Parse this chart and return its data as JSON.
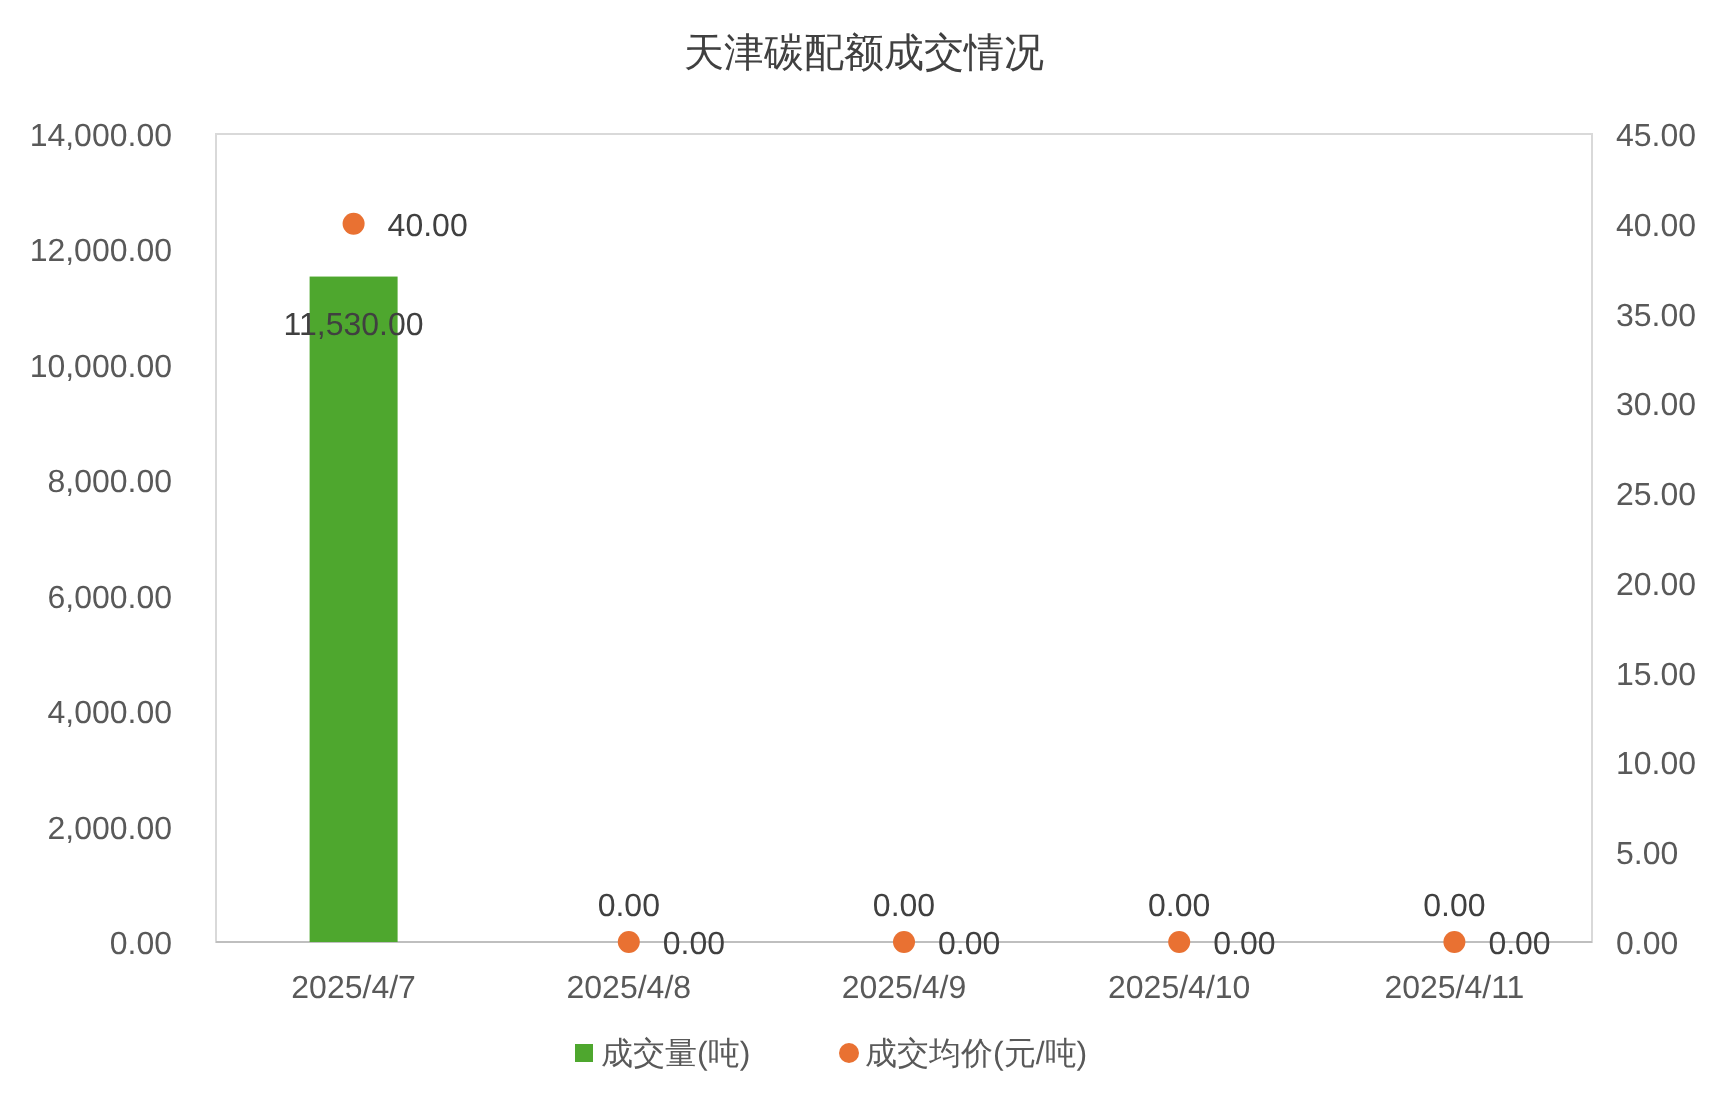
{
  "chart_data": {
    "type": "bar",
    "title": "天津碳配额成交情况",
    "categories": [
      "2025/4/7",
      "2025/4/8",
      "2025/4/9",
      "2025/4/10",
      "2025/4/11"
    ],
    "series": [
      {
        "name": "成交量(吨)",
        "type": "bar",
        "color": "#4ea72e",
        "values": [
          11530,
          0,
          0,
          0,
          0
        ],
        "value_labels": [
          "11,530.00",
          "0.00",
          "0.00",
          "0.00",
          "0.00"
        ]
      },
      {
        "name": "成交均价(元/吨)",
        "type": "scatter",
        "axis": "y2",
        "marker": "circle",
        "color": "#e97132",
        "values": [
          40,
          0,
          0,
          0,
          0
        ],
        "value_labels": [
          "40.00",
          "0.00",
          "0.00",
          "0.00",
          "0.00"
        ]
      }
    ],
    "ylim": [
      0,
      14000
    ],
    "yticks": [
      {
        "value": 0,
        "label": "0.00"
      },
      {
        "value": 2000,
        "label": "2,000.00"
      },
      {
        "value": 4000,
        "label": "4,000.00"
      },
      {
        "value": 6000,
        "label": "6,000.00"
      },
      {
        "value": 8000,
        "label": "8,000.00"
      },
      {
        "value": 10000,
        "label": "10,000.00"
      },
      {
        "value": 12000,
        "label": "12,000.00"
      },
      {
        "value": 14000,
        "label": "14,000.00"
      }
    ],
    "y2lim": [
      0,
      45
    ],
    "y2ticks": [
      {
        "value": 0,
        "label": "0.00"
      },
      {
        "value": 5,
        "label": "5.00"
      },
      {
        "value": 10,
        "label": "10.00"
      },
      {
        "value": 15,
        "label": "15.00"
      },
      {
        "value": 20,
        "label": "20.00"
      },
      {
        "value": 25,
        "label": "25.00"
      },
      {
        "value": 30,
        "label": "30.00"
      },
      {
        "value": 35,
        "label": "35.00"
      },
      {
        "value": 40,
        "label": "40.00"
      },
      {
        "value": 45,
        "label": "45.00"
      }
    ],
    "legend": "bottom"
  }
}
